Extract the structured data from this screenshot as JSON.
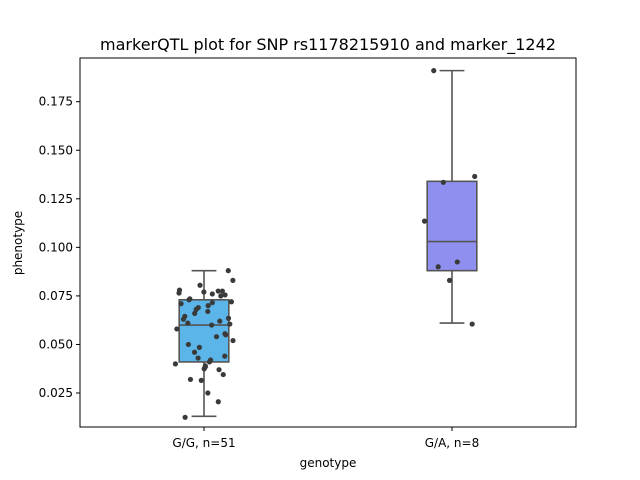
{
  "chart_data": {
    "type": "box",
    "title": "markerQTL plot for SNP rs1178215910 and marker_1242",
    "xlabel": "genotype",
    "ylabel": "phenotype",
    "ylim": [
      0.0075,
      0.1975
    ],
    "yticks": [
      "0.025",
      "0.050",
      "0.075",
      "0.100",
      "0.125",
      "0.150",
      "0.175"
    ],
    "grid": false,
    "categories": [
      "G/G, n=51",
      "G/A, n=8"
    ],
    "colors": {
      "box_fill": [
        "#5bb5e8",
        "#8f8ff0"
      ],
      "box_edge": "#555555",
      "points": "#3a3a3a",
      "axes": "#000000"
    },
    "boxes": [
      {
        "category": "G/G, n=51",
        "whisker_low": 0.013,
        "q1": 0.041,
        "median": 0.06,
        "q3": 0.073,
        "whisker_high": 0.088
      },
      {
        "category": "G/A, n=8",
        "whisker_low": 0.061,
        "q1": 0.088,
        "median": 0.103,
        "q3": 0.134,
        "whisker_high": 0.191
      }
    ],
    "points": [
      [
        0.0125,
        0.0205,
        0.025,
        0.0315,
        0.032,
        0.0345,
        0.037,
        0.0375,
        0.0385,
        0.039,
        0.04,
        0.041,
        0.042,
        0.043,
        0.044,
        0.046,
        0.0485,
        0.05,
        0.052,
        0.054,
        0.055,
        0.0555,
        0.058,
        0.06,
        0.0605,
        0.061,
        0.062,
        0.063,
        0.0635,
        0.0645,
        0.066,
        0.067,
        0.068,
        0.069,
        0.07,
        0.071,
        0.0715,
        0.072,
        0.073,
        0.0735,
        0.075,
        0.0755,
        0.076,
        0.0765,
        0.077,
        0.0775,
        0.0775,
        0.078,
        0.0805,
        0.083,
        0.088
      ],
      [
        0.0605,
        0.083,
        0.09,
        0.0925,
        0.1135,
        0.1335,
        0.1365,
        0.191
      ]
    ]
  }
}
